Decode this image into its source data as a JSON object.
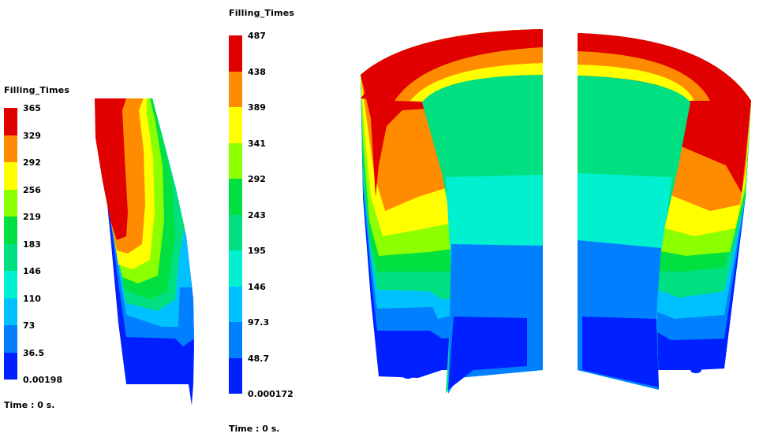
{
  "left_panel": {
    "title": "Filling_Times",
    "time_label": "Time : 0 s.",
    "legend": {
      "ticks": [
        "365",
        "329",
        "292",
        "256",
        "219",
        "183",
        "146",
        "110",
        "73",
        "36.5",
        "0.00198"
      ],
      "colors": [
        "#e00000",
        "#ff8c00",
        "#ffff00",
        "#8cff00",
        "#00e040",
        "#00e080",
        "#00f0d0",
        "#00c0ff",
        "#0080ff",
        "#0020ff"
      ]
    }
  },
  "center_panel": {
    "title": "Filling_Times",
    "time_label": "Time : 0 s.",
    "legend": {
      "ticks": [
        "487",
        "438",
        "389",
        "341",
        "292",
        "243",
        "195",
        "146",
        "97.3",
        "48.7",
        "0.000172"
      ],
      "colors": [
        "#e00000",
        "#ff8c00",
        "#ffff00",
        "#8cff00",
        "#00e040",
        "#00e080",
        "#00f0d0",
        "#00c0ff",
        "#0080ff",
        "#0020ff"
      ]
    }
  }
}
